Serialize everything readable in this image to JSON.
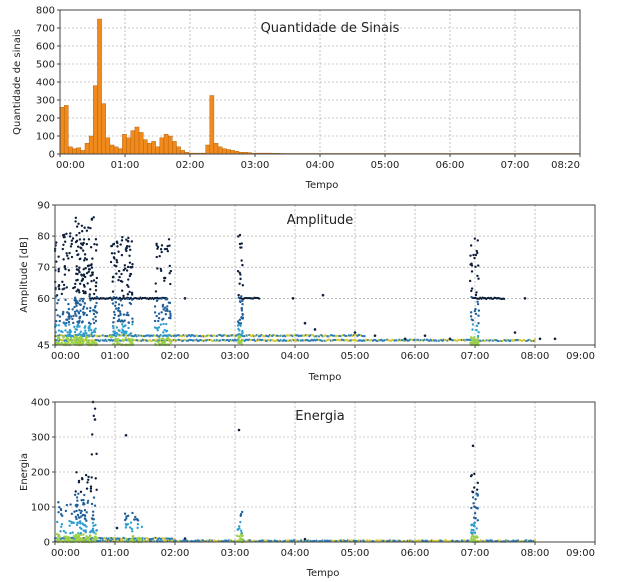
{
  "chart_data": [
    {
      "type": "bar",
      "title": "Quantidade de Sinais",
      "xlabel": "Tempo",
      "ylabel": "Quantidade de sinais",
      "color": "#f08a1c",
      "ylim": [
        0,
        800
      ],
      "yticks": [
        "0",
        "100",
        "200",
        "300",
        "400",
        "500",
        "600",
        "700",
        "800"
      ],
      "xticks": [
        "00:00",
        "01:00",
        "02:00",
        "03:00",
        "04:00",
        "05:00",
        "06:00",
        "07:00",
        "08:20"
      ],
      "xlim_minutes": [
        0,
        500
      ],
      "bin_minutes": 4,
      "values": [
        260,
        270,
        40,
        30,
        35,
        20,
        60,
        100,
        380,
        750,
        280,
        90,
        50,
        40,
        30,
        110,
        90,
        130,
        150,
        120,
        80,
        60,
        70,
        40,
        90,
        110,
        100,
        70,
        40,
        20,
        10,
        5,
        5,
        5,
        5,
        50,
        325,
        60,
        40,
        30,
        25,
        20,
        15,
        10,
        10,
        8,
        5,
        5,
        5,
        5,
        5,
        4,
        4,
        3,
        3,
        3,
        3,
        3,
        3,
        3,
        3,
        3,
        3,
        3,
        3,
        3,
        3,
        3,
        3,
        3,
        3,
        3,
        3,
        3,
        3,
        3,
        3,
        3,
        3,
        3,
        3,
        3,
        3,
        3,
        3,
        3,
        3,
        3,
        3,
        3,
        3,
        3,
        3,
        3,
        3,
        3,
        3,
        3,
        3,
        3,
        3,
        3,
        3,
        3,
        3,
        3,
        3,
        3,
        3,
        3,
        3,
        3,
        3,
        3,
        3,
        3,
        3,
        3,
        3,
        3,
        3,
        3,
        3,
        3,
        3
      ]
    },
    {
      "type": "scatter",
      "title": "Amplitude",
      "xlabel": "Tempo",
      "ylabel": "Amplitude [dB]",
      "ylim": [
        45,
        90
      ],
      "yticks": [
        "45",
        "60",
        "70",
        "80",
        "90"
      ],
      "xticks": [
        "00:00",
        "01:00",
        "02:00",
        "03:00",
        "04:00",
        "05:00",
        "06:00",
        "07:00",
        "08:00",
        "09:00"
      ],
      "xlim_minutes": [
        0,
        540
      ],
      "clusters": [
        {
          "t0": 0,
          "t1": 30,
          "y0": 45,
          "y1": 82,
          "n": 240
        },
        {
          "t0": 20,
          "t1": 42,
          "y0": 45,
          "y1": 87,
          "n": 200
        },
        {
          "t0": 56,
          "t1": 78,
          "y0": 45,
          "y1": 80,
          "n": 180
        },
        {
          "t0": 100,
          "t1": 116,
          "y0": 45,
          "y1": 79,
          "n": 110
        },
        {
          "t0": 183,
          "t1": 188,
          "y0": 45,
          "y1": 82,
          "n": 60
        },
        {
          "t0": 415,
          "t1": 424,
          "y0": 45,
          "y1": 81,
          "n": 80
        }
      ],
      "bands": [
        {
          "t0": 0,
          "t1": 480,
          "y": 46.5
        },
        {
          "t0": 0,
          "t1": 310,
          "y": 48
        },
        {
          "t0": 35,
          "t1": 112,
          "y": 60
        },
        {
          "t0": 185,
          "t1": 205,
          "y": 60
        },
        {
          "t0": 418,
          "t1": 450,
          "y": 60
        }
      ],
      "outliers": [
        {
          "t": 130,
          "y": 60
        },
        {
          "t": 238,
          "y": 60
        },
        {
          "t": 268,
          "y": 61
        },
        {
          "t": 250,
          "y": 52
        },
        {
          "t": 260,
          "y": 50
        },
        {
          "t": 300,
          "y": 49
        },
        {
          "t": 320,
          "y": 48
        },
        {
          "t": 350,
          "y": 47
        },
        {
          "t": 370,
          "y": 48
        },
        {
          "t": 395,
          "y": 47
        },
        {
          "t": 460,
          "y": 49
        },
        {
          "t": 470,
          "y": 60
        },
        {
          "t": 485,
          "y": 47
        },
        {
          "t": 500,
          "y": 47
        }
      ]
    },
    {
      "type": "scatter",
      "title": "Energia",
      "xlabel": "Tempo",
      "ylabel": "Energia",
      "ylim": [
        0,
        400
      ],
      "yticks": [
        "0",
        "100",
        "200",
        "300",
        "400"
      ],
      "xticks": [
        "00:00",
        "01:00",
        "02:00",
        "03:00",
        "04:00",
        "05:00",
        "06:00",
        "07:00",
        "08:00",
        "09:00"
      ],
      "xlim_minutes": [
        0,
        540
      ],
      "clusters": [
        {
          "t0": 2,
          "t1": 32,
          "y0": 0,
          "y1": 120,
          "n": 90
        },
        {
          "t0": 20,
          "t1": 42,
          "y0": 0,
          "y1": 200,
          "n": 120
        },
        {
          "t0": 36,
          "t1": 42,
          "y0": 250,
          "y1": 400,
          "n": 5
        },
        {
          "t0": 70,
          "t1": 88,
          "y0": 0,
          "y1": 90,
          "n": 40
        },
        {
          "t0": 182,
          "t1": 188,
          "y0": 0,
          "y1": 100,
          "n": 30
        },
        {
          "t0": 416,
          "t1": 423,
          "y0": 0,
          "y1": 200,
          "n": 60
        }
      ],
      "bands": [
        {
          "t0": 0,
          "t1": 480,
          "y": 3
        },
        {
          "t0": 0,
          "t1": 120,
          "y": 10
        }
      ],
      "outliers": [
        {
          "t": 38,
          "y": 400
        },
        {
          "t": 40,
          "y": 350
        },
        {
          "t": 71,
          "y": 305
        },
        {
          "t": 184,
          "y": 320
        },
        {
          "t": 418,
          "y": 275
        },
        {
          "t": 62,
          "y": 40
        },
        {
          "t": 130,
          "y": 10
        },
        {
          "t": 250,
          "y": 8
        }
      ]
    }
  ]
}
